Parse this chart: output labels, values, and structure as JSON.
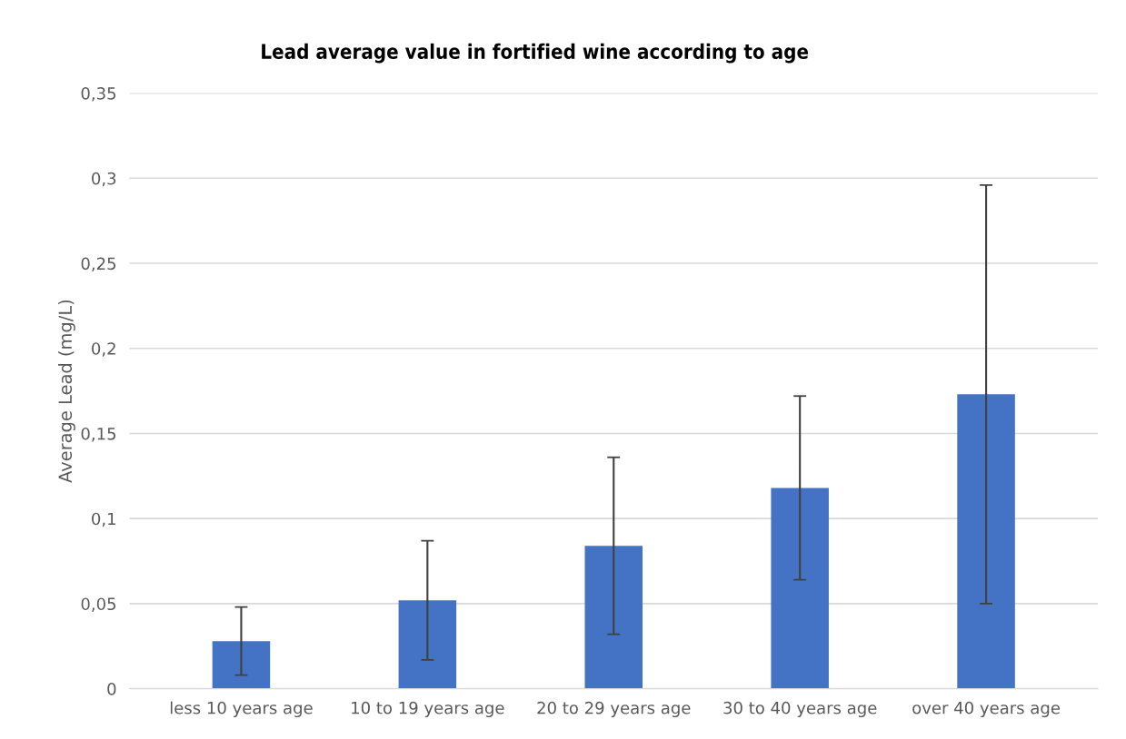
{
  "chart_data": {
    "type": "bar",
    "title": "Lead average value in fortified wine according to age",
    "ylabel": "Average Lead (mg/L)",
    "categories": [
      "less 10 years age",
      "10 to 19 years age",
      "20 to 29 years age",
      "30 to 40 years age",
      "over 40 years age"
    ],
    "values": [
      0.028,
      0.052,
      0.084,
      0.118,
      0.173
    ],
    "errors": [
      0.02,
      0.035,
      0.052,
      0.054,
      0.123
    ],
    "color": "#4472c4",
    "ylim": [
      0,
      0.35
    ],
    "yticks": [
      0,
      {
        "value": 0.05,
        "label": "0,05"
      },
      {
        "value": 0.1,
        "label": "0,1"
      },
      {
        "value": 0.15,
        "label": "0,15"
      },
      {
        "value": 0.2,
        "label": "0,2"
      },
      {
        "value": 0.25,
        "label": "0,25"
      },
      {
        "value": 0.3,
        "label": "0,3"
      },
      {
        "value": 0.35,
        "label": "0,35"
      }
    ],
    "grid": "y",
    "legend": false
  }
}
